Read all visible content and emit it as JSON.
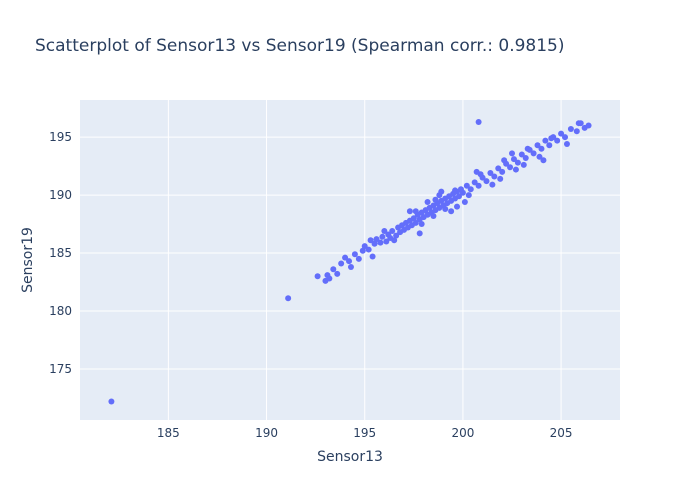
{
  "chart_data": {
    "type": "scatter",
    "title": "Scatterplot of Sensor13 vs Sensor19 (Spearman corr.: 0.9815)",
    "xlabel": "Sensor13",
    "ylabel": "Sensor19",
    "xlim": [
      180.5,
      208
    ],
    "ylim": [
      170.6,
      198.2
    ],
    "x_ticks": [
      185,
      190,
      195,
      200,
      205
    ],
    "y_ticks": [
      175,
      180,
      185,
      190,
      195
    ],
    "grid": true,
    "legend": "none",
    "colors": {
      "marker": "#636efa",
      "plot_bg": "#e5ecf6",
      "grid": "#ffffff",
      "text": "#2a3f5f"
    },
    "points": [
      [
        182.1,
        172.2
      ],
      [
        191.1,
        181.1
      ],
      [
        192.6,
        183.0
      ],
      [
        193.0,
        182.6
      ],
      [
        193.1,
        183.1
      ],
      [
        193.4,
        183.6
      ],
      [
        193.6,
        183.2
      ],
      [
        193.8,
        184.1
      ],
      [
        194.0,
        184.6
      ],
      [
        194.2,
        184.3
      ],
      [
        194.5,
        184.9
      ],
      [
        194.7,
        184.5
      ],
      [
        194.9,
        185.2
      ],
      [
        195.0,
        185.6
      ],
      [
        195.2,
        185.3
      ],
      [
        195.3,
        186.1
      ],
      [
        195.5,
        185.8
      ],
      [
        195.6,
        186.2
      ],
      [
        195.8,
        185.9
      ],
      [
        195.9,
        186.4
      ],
      [
        196.1,
        186.0
      ],
      [
        196.2,
        186.6
      ],
      [
        196.3,
        186.3
      ],
      [
        196.4,
        186.9
      ],
      [
        196.6,
        186.5
      ],
      [
        196.7,
        187.2
      ],
      [
        196.8,
        186.8
      ],
      [
        196.9,
        187.4
      ],
      [
        197.0,
        187.0
      ],
      [
        197.1,
        187.6
      ],
      [
        197.2,
        187.2
      ],
      [
        197.3,
        187.8
      ],
      [
        197.4,
        187.4
      ],
      [
        197.5,
        188.0
      ],
      [
        197.6,
        187.6
      ],
      [
        197.7,
        188.3
      ],
      [
        197.8,
        187.9
      ],
      [
        197.9,
        188.5
      ],
      [
        198.0,
        188.1
      ],
      [
        198.1,
        188.7
      ],
      [
        198.2,
        188.3
      ],
      [
        198.3,
        188.9
      ],
      [
        198.4,
        188.5
      ],
      [
        198.5,
        189.1
      ],
      [
        198.6,
        188.7
      ],
      [
        198.7,
        189.3
      ],
      [
        198.8,
        188.9
      ],
      [
        198.9,
        189.5
      ],
      [
        199.0,
        189.1
      ],
      [
        199.1,
        189.7
      ],
      [
        199.2,
        189.3
      ],
      [
        199.3,
        189.9
      ],
      [
        199.4,
        189.5
      ],
      [
        199.5,
        190.1
      ],
      [
        199.6,
        189.7
      ],
      [
        199.7,
        190.3
      ],
      [
        199.8,
        189.9
      ],
      [
        199.9,
        190.5
      ],
      [
        200.0,
        190.2
      ],
      [
        200.2,
        190.8
      ],
      [
        200.4,
        190.5
      ],
      [
        200.6,
        191.1
      ],
      [
        200.8,
        190.8
      ],
      [
        201.0,
        191.5
      ],
      [
        201.2,
        191.2
      ],
      [
        201.4,
        191.9
      ],
      [
        201.6,
        191.6
      ],
      [
        201.8,
        192.3
      ],
      [
        202.0,
        192.0
      ],
      [
        202.2,
        192.7
      ],
      [
        202.4,
        192.4
      ],
      [
        202.6,
        193.1
      ],
      [
        202.8,
        192.8
      ],
      [
        203.0,
        193.5
      ],
      [
        203.2,
        193.2
      ],
      [
        203.4,
        193.9
      ],
      [
        203.6,
        193.6
      ],
      [
        203.8,
        194.3
      ],
      [
        204.0,
        194.0
      ],
      [
        204.2,
        194.7
      ],
      [
        204.4,
        194.3
      ],
      [
        204.6,
        195.0
      ],
      [
        204.8,
        194.7
      ],
      [
        205.0,
        195.3
      ],
      [
        205.2,
        195.0
      ],
      [
        205.5,
        195.7
      ],
      [
        205.8,
        195.5
      ],
      [
        205.9,
        196.2
      ],
      [
        206.2,
        195.8
      ],
      [
        206.4,
        196.0
      ],
      [
        197.3,
        188.6
      ],
      [
        197.9,
        187.5
      ],
      [
        198.5,
        188.2
      ],
      [
        199.1,
        188.8
      ],
      [
        198.2,
        189.4
      ],
      [
        198.8,
        190.0
      ],
      [
        199.6,
        190.4
      ],
      [
        200.3,
        190.0
      ],
      [
        200.9,
        191.8
      ],
      [
        201.5,
        190.9
      ],
      [
        202.1,
        193.0
      ],
      [
        202.7,
        192.2
      ],
      [
        203.3,
        194.0
      ],
      [
        203.9,
        193.3
      ],
      [
        204.5,
        194.9
      ],
      [
        196.5,
        186.1
      ],
      [
        197.6,
        188.6
      ],
      [
        198.6,
        189.6
      ],
      [
        199.4,
        188.6
      ],
      [
        200.1,
        189.4
      ],
      [
        195.4,
        184.7
      ],
      [
        194.3,
        183.8
      ],
      [
        193.2,
        182.8
      ],
      [
        196.0,
        186.9
      ],
      [
        200.7,
        192.0
      ],
      [
        201.9,
        191.4
      ],
      [
        203.1,
        192.6
      ],
      [
        202.5,
        193.6
      ],
      [
        204.1,
        193.0
      ],
      [
        205.3,
        194.4
      ],
      [
        200.8,
        196.3
      ],
      [
        206.0,
        196.2
      ],
      [
        197.8,
        186.7
      ],
      [
        198.9,
        190.3
      ],
      [
        199.7,
        189.0
      ]
    ]
  }
}
